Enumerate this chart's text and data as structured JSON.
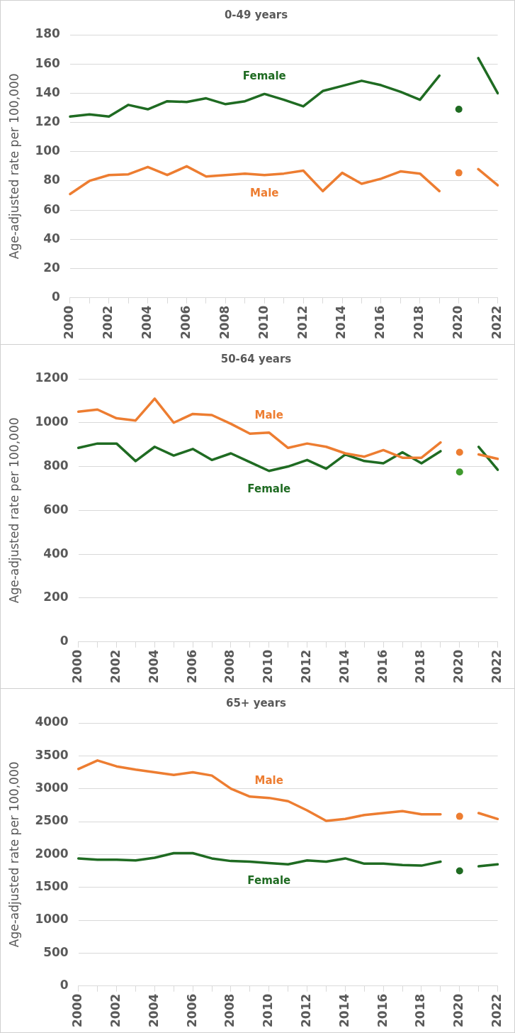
{
  "chart_data": [
    {
      "type": "line",
      "title": "0-49 years",
      "ylabel": "Age-adjusted rate per 100,000",
      "categories": [
        "2000",
        null,
        "2002",
        null,
        "2004",
        null,
        "2006",
        null,
        "2008",
        null,
        "2010",
        null,
        "2012",
        null,
        "2014",
        null,
        "2016",
        null,
        "2018",
        null,
        "2020",
        null,
        "2022"
      ],
      "ylim": [
        0,
        180
      ],
      "yticks": [
        0,
        20,
        40,
        60,
        80,
        100,
        120,
        140,
        160,
        180
      ],
      "grid": "y",
      "legend": false,
      "marker": "none",
      "line_style": "solid",
      "series": [
        {
          "name": "Female",
          "color": "#1f6b22",
          "values": [
            124,
            125.5,
            124,
            132,
            129,
            134.5,
            134,
            136.5,
            132.5,
            134.5,
            139.5,
            135.5,
            131,
            141.5,
            145,
            148.5,
            145.5,
            141,
            135.5,
            152,
            null,
            164,
            140
          ]
        },
        {
          "name": "Male",
          "color": "#ed7d31",
          "values": [
            71,
            80,
            84,
            84.5,
            89.5,
            84,
            90,
            83,
            84,
            85,
            84,
            85,
            87,
            73,
            85.5,
            78,
            81.5,
            86.5,
            85,
            73,
            null,
            88,
            77
          ]
        },
        {
          "type": "scatter",
          "marker": "circle",
          "color": "#1f6b22",
          "values": [
            null,
            null,
            null,
            null,
            null,
            null,
            null,
            null,
            null,
            null,
            null,
            null,
            null,
            null,
            null,
            null,
            null,
            null,
            null,
            null,
            129,
            null,
            null
          ]
        },
        {
          "type": "scatter",
          "marker": "circle",
          "color": "#ed7d31",
          "values": [
            null,
            null,
            null,
            null,
            null,
            null,
            null,
            null,
            null,
            null,
            null,
            null,
            null,
            null,
            null,
            null,
            null,
            null,
            null,
            null,
            85.5,
            null,
            null
          ]
        }
      ]
    },
    {
      "type": "line",
      "title": "50-64 years",
      "ylabel": "Age-adjusted rate per 100,000",
      "categories": [
        "2000",
        null,
        "2002",
        null,
        "2004",
        null,
        "2006",
        null,
        "2008",
        null,
        "2010",
        null,
        "2012",
        null,
        "2014",
        null,
        "2016",
        null,
        "2018",
        null,
        "2020",
        null,
        "2022"
      ],
      "ylim": [
        0,
        1200
      ],
      "yticks": [
        0,
        200,
        400,
        600,
        800,
        1000,
        1200
      ],
      "grid": "y",
      "legend": false,
      "marker": "none",
      "line_style": "solid",
      "series": [
        {
          "name": "Male",
          "color": "#ed7d31",
          "values": [
            1050,
            1060,
            1020,
            1010,
            1110,
            1000,
            1040,
            1035,
            995,
            950,
            955,
            885,
            905,
            890,
            860,
            845,
            875,
            840,
            840,
            910,
            null,
            855,
            835
          ]
        },
        {
          "name": "Female",
          "color": "#1f6b22",
          "values": [
            885,
            905,
            905,
            825,
            890,
            850,
            880,
            830,
            860,
            820,
            780,
            800,
            830,
            790,
            855,
            825,
            815,
            865,
            815,
            870,
            null,
            890,
            785
          ]
        },
        {
          "type": "scatter",
          "marker": "circle",
          "color": "#ed7d31",
          "values": [
            null,
            null,
            null,
            null,
            null,
            null,
            null,
            null,
            null,
            null,
            null,
            null,
            null,
            null,
            null,
            null,
            null,
            null,
            null,
            null,
            865,
            null,
            null
          ]
        },
        {
          "type": "scatter",
          "marker": "circle",
          "color": "#3f9a2e",
          "values": [
            null,
            null,
            null,
            null,
            null,
            null,
            null,
            null,
            null,
            null,
            null,
            null,
            null,
            null,
            null,
            null,
            null,
            null,
            null,
            null,
            775,
            null,
            null
          ]
        }
      ]
    },
    {
      "type": "line",
      "title": "65+ years",
      "ylabel": "Age-adjusted rate per 100,000",
      "categories": [
        "2000",
        null,
        "2002",
        null,
        "2004",
        null,
        "2006",
        null,
        "2008",
        null,
        "2010",
        null,
        "2012",
        null,
        "2014",
        null,
        "2016",
        null,
        "2018",
        null,
        "2020",
        null,
        "2022"
      ],
      "ylim": [
        0,
        4000
      ],
      "yticks": [
        0,
        500,
        1000,
        1500,
        2000,
        2500,
        3000,
        3500,
        4000
      ],
      "grid": "y",
      "legend": false,
      "marker": "none",
      "line_style": "solid",
      "series": [
        {
          "name": "Male",
          "color": "#ed7d31",
          "values": [
            3300,
            3430,
            3340,
            3290,
            3250,
            3210,
            3250,
            3200,
            3000,
            2880,
            2860,
            2810,
            2670,
            2510,
            2540,
            2600,
            2630,
            2660,
            2610,
            2610,
            null,
            2630,
            2540
          ]
        },
        {
          "name": "Female",
          "color": "#1f6b22",
          "values": [
            1940,
            1920,
            1920,
            1910,
            1950,
            2020,
            2020,
            1940,
            1900,
            1890,
            1870,
            1850,
            1910,
            1890,
            1940,
            1860,
            1860,
            1840,
            1830,
            1890,
            null,
            1820,
            1850
          ]
        },
        {
          "type": "scatter",
          "marker": "circle",
          "color": "#ed7d31",
          "values": [
            null,
            null,
            null,
            null,
            null,
            null,
            null,
            null,
            null,
            null,
            null,
            null,
            null,
            null,
            null,
            null,
            null,
            null,
            null,
            null,
            2580,
            null,
            null
          ]
        },
        {
          "type": "scatter",
          "marker": "circle",
          "color": "#1f6b22",
          "values": [
            null,
            null,
            null,
            null,
            null,
            null,
            null,
            null,
            null,
            null,
            null,
            null,
            null,
            null,
            null,
            null,
            null,
            null,
            null,
            null,
            1750,
            null,
            null
          ]
        }
      ]
    }
  ]
}
